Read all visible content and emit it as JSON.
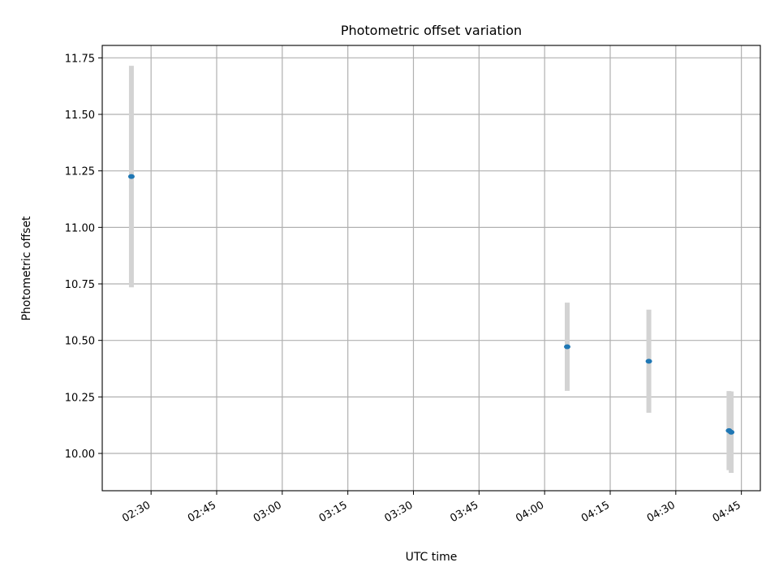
{
  "chart_data": {
    "type": "scatter",
    "title": "Photometric offset variation",
    "xlabel": "UTC time",
    "ylabel": "Photometric offset",
    "x_axis_type": "time",
    "x_ticks": [
      "02:30",
      "02:45",
      "03:00",
      "03:15",
      "03:30",
      "03:45",
      "04:00",
      "04:15",
      "04:30",
      "04:45"
    ],
    "y_ticks": [
      "10.00",
      "10.25",
      "10.50",
      "10.75",
      "11.00",
      "11.25",
      "11.50",
      "11.75"
    ],
    "xlim": [
      "02:18:50",
      "04:49:20"
    ],
    "ylim": [
      9.835,
      11.805
    ],
    "grid": true,
    "colors": {
      "point": "#1f77b4",
      "errorbar": "#d3d3d3",
      "grid": "#b0b0b0"
    },
    "series": [
      {
        "points": [
          {
            "time": "02:25:30",
            "y": 11.225,
            "err": 0.49
          },
          {
            "time": "04:05:10",
            "y": 10.472,
            "err": 0.195
          },
          {
            "time": "04:23:50",
            "y": 10.408,
            "err": 0.228
          },
          {
            "time": "04:42:10",
            "y": 10.101,
            "err": 0.175
          },
          {
            "time": "04:42:40",
            "y": 10.094,
            "err": 0.18
          }
        ]
      }
    ]
  }
}
